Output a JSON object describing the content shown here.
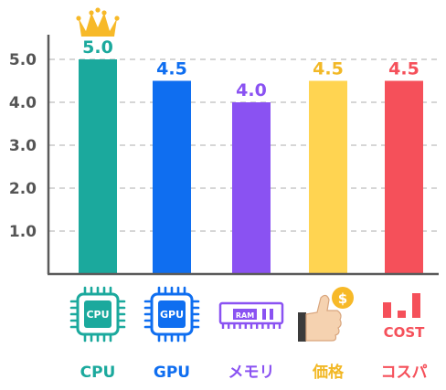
{
  "chart_data": {
    "type": "bar",
    "categories": [
      "CPU",
      "GPU",
      "メモリ",
      "価格",
      "コスパ"
    ],
    "values": [
      5.0,
      4.5,
      4.0,
      4.5,
      4.5
    ],
    "value_labels": [
      "5.0",
      "4.5",
      "4.0",
      "4.5",
      "4.5"
    ],
    "colors": [
      "#1ba99d",
      "#0f6ef0",
      "#8a52f2",
      "#ffd451",
      "#f5505a"
    ],
    "label_colors": [
      "#1ba99d",
      "#0f6ef0",
      "#8a52f2",
      "#f2b826",
      "#f5505a"
    ],
    "y_ticks": [
      "5.0",
      "4.0",
      "3.0",
      "2.0",
      "1.0"
    ],
    "ylim": [
      0,
      5
    ],
    "grid": true,
    "top_marker": "crown-icon",
    "icons": [
      "cpu-chip-icon",
      "gpu-chip-icon",
      "ram-module-icon",
      "thumbs-up-dollar-icon",
      "cost-chart-icon"
    ],
    "icon_texts": [
      "CPU",
      "GPU",
      "RAM",
      "",
      "COST"
    ]
  }
}
